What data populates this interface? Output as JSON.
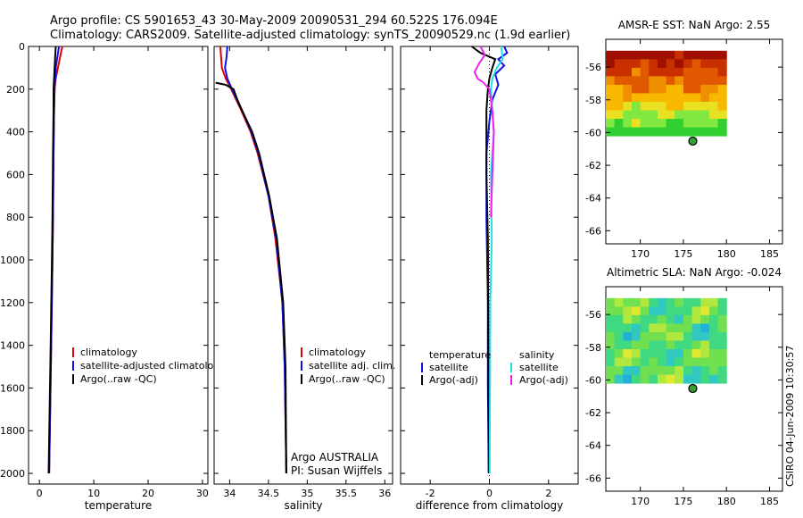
{
  "title": {
    "line1": "Argo profile: CS 5901653_43 30-May-2009 20090531_294 60.522S 176.094E",
    "line2": "Climatology: CARS2009. Satellite-adjusted climatology: synTS_20090529.nc (1.9d earlier)"
  },
  "footer": {
    "institution": "Argo AUSTRALIA",
    "pi": "PI: Susan Wijffels",
    "stamp": "CSIRO 04-Jun-2009 10:30:57"
  },
  "colors": {
    "red": "#e00000",
    "blue": "#1010e8",
    "black": "#000000",
    "cyan": "#20e0e8",
    "magenta": "#f020f0"
  },
  "chart_data": [
    {
      "type": "line",
      "panel": "temperature",
      "xlabel": "temperature",
      "ylabel": "",
      "xlim": [
        -2,
        31
      ],
      "ylim": [
        2050,
        0
      ],
      "xticks": [
        0,
        10,
        20,
        30
      ],
      "yticks": [
        0,
        200,
        400,
        600,
        800,
        1000,
        1200,
        1400,
        1600,
        1800,
        2000
      ],
      "legend": [
        "climatology",
        "satellite-adjusted climatology",
        "Argo(..raw -QC)"
      ],
      "series": [
        {
          "name": "climatology",
          "color": "red",
          "depth": [
            0,
            50,
            100,
            150,
            200,
            300,
            500,
            800,
            1000,
            1500,
            2000
          ],
          "values": [
            4.2,
            3.8,
            3.4,
            3.0,
            2.8,
            2.7,
            2.6,
            2.5,
            2.4,
            2.1,
            1.8
          ]
        },
        {
          "name": "satellite-adjusted climatology",
          "color": "blue",
          "depth": [
            0,
            50,
            100,
            150,
            200,
            300,
            500,
            800,
            1000,
            1500,
            2000
          ],
          "values": [
            3.6,
            3.3,
            3.0,
            2.9,
            2.8,
            2.7,
            2.6,
            2.5,
            2.4,
            2.1,
            1.8
          ]
        },
        {
          "name": "Argo(..raw -QC)",
          "color": "black",
          "depth": [
            0,
            50,
            100,
            150,
            200,
            300,
            500,
            800,
            1000,
            1500,
            2000
          ],
          "values": [
            3.0,
            2.9,
            2.8,
            2.7,
            2.6,
            2.6,
            2.5,
            2.4,
            2.3,
            2.0,
            1.7
          ]
        }
      ]
    },
    {
      "type": "line",
      "panel": "salinity",
      "xlabel": "salinity",
      "ylabel": "",
      "xlim": [
        33.8,
        36.1
      ],
      "ylim": [
        2050,
        0
      ],
      "xticks": [
        34,
        34.5,
        35,
        35.5,
        36
      ],
      "legend": [
        "climatology",
        "satellite adj. clim.",
        "Argo(..raw -QC)"
      ],
      "series": [
        {
          "name": "climatology",
          "color": "red",
          "depth": [
            0,
            50,
            100,
            150,
            200,
            300,
            400,
            500,
            700,
            900,
            1200,
            1500,
            2000
          ],
          "values": [
            33.88,
            33.89,
            33.9,
            33.95,
            34.02,
            34.15,
            34.27,
            34.36,
            34.5,
            34.59,
            34.68,
            34.71,
            34.73
          ]
        },
        {
          "name": "satellite adj. clim.",
          "color": "blue",
          "depth": [
            0,
            50,
            100,
            150,
            200,
            300,
            400,
            500,
            700,
            900,
            1200,
            1500,
            2000
          ],
          "values": [
            33.97,
            33.96,
            33.94,
            33.97,
            34.03,
            34.16,
            34.28,
            34.37,
            34.5,
            34.6,
            34.68,
            34.71,
            34.73
          ]
        },
        {
          "name": "Argo(..raw -QC)",
          "color": "black",
          "depth": [
            170,
            180,
            200,
            250,
            300,
            400,
            500,
            700,
            900,
            1200,
            1500,
            2000
          ],
          "values": [
            33.82,
            33.95,
            34.05,
            34.1,
            34.16,
            34.29,
            34.38,
            34.51,
            34.61,
            34.69,
            34.72,
            34.73
          ]
        }
      ]
    },
    {
      "type": "line",
      "panel": "difference",
      "xlabel": "difference from climatology",
      "ylabel": "",
      "xlim": [
        -3,
        3
      ],
      "ylim": [
        2050,
        0
      ],
      "xticks": [
        -2,
        0,
        2
      ],
      "legend": [
        "temperature",
        "satellite",
        "Argo(-adj)",
        "salinity",
        "satellite",
        "Argo(-adj)"
      ],
      "series": [
        {
          "name": "temperature satellite",
          "color": "blue",
          "depth": [
            0,
            30,
            60,
            90,
            130,
            180,
            250,
            350,
            500,
            800,
            1200,
            1600,
            2000
          ],
          "values": [
            0.5,
            0.6,
            0.3,
            0.5,
            0.2,
            0.3,
            0.1,
            0.0,
            -0.1,
            -0.1,
            -0.05,
            -0.05,
            -0.02
          ]
        },
        {
          "name": "temperature Argo(-adj)",
          "color": "black",
          "depth": [
            0,
            30,
            60,
            100,
            150,
            200,
            300,
            400,
            600,
            900,
            1300,
            1700,
            2000
          ],
          "values": [
            -0.6,
            -0.3,
            0.2,
            0.1,
            0.0,
            -0.05,
            -0.1,
            -0.1,
            -0.1,
            -0.05,
            -0.04,
            -0.03,
            -0.02
          ]
        },
        {
          "name": "salinity satellite",
          "color": "cyan",
          "depth": [
            0,
            60,
            100,
            150,
            200,
            300,
            400,
            600,
            900,
            1200,
            1600,
            2000
          ],
          "values": [
            0.4,
            0.45,
            0.25,
            0.1,
            0.05,
            0.1,
            0.15,
            0.05,
            0.08,
            0.03,
            0.02,
            0.01
          ]
        },
        {
          "name": "salinity Argo(-adj)",
          "color": "magenta",
          "depth": [
            0,
            40,
            80,
            120,
            150,
            170,
            200,
            250,
            300,
            400,
            600,
            800
          ],
          "values": [
            -0.3,
            -0.15,
            -0.35,
            -0.5,
            -0.4,
            -0.2,
            0.0,
            0.05,
            0.1,
            0.15,
            0.1,
            0.05
          ]
        }
      ]
    },
    {
      "type": "heatmap",
      "panel": "sst-map",
      "title": "AMSR-E SST: NaN Argo: 2.55",
      "xlim": [
        166,
        186.5
      ],
      "ylim": [
        -66.8,
        -54.3
      ],
      "xticks": [
        170,
        175,
        180,
        185
      ],
      "yticks": [
        -56,
        -58,
        -60,
        -62,
        -64,
        -66
      ],
      "float_position": {
        "lon": 176.094,
        "lat": -60.522
      },
      "field_extent": {
        "lon": [
          166,
          180
        ],
        "lat": [
          -60.2,
          -55
        ]
      },
      "palette": [
        "#a01000",
        "#c83000",
        "#e05800",
        "#f09000",
        "#f8b800",
        "#e8e020",
        "#80e840",
        "#30d030"
      ]
    },
    {
      "type": "heatmap",
      "panel": "sla-map",
      "title": "Altimetric SLA: NaN Argo: -0.024",
      "xlim": [
        166,
        186.5
      ],
      "ylim": [
        -66.8,
        -54.3
      ],
      "xticks": [
        170,
        175,
        180,
        185
      ],
      "yticks": [
        -56,
        -58,
        -60,
        -62,
        -64,
        -66
      ],
      "float_position": {
        "lon": 176.094,
        "lat": -60.522
      },
      "field_extent": {
        "lon": [
          166,
          180
        ],
        "lat": [
          -60.2,
          -55
        ]
      },
      "palette": [
        "#20b0d8",
        "#30c8c0",
        "#40d880",
        "#70e050",
        "#b0e840",
        "#e0e830"
      ]
    }
  ]
}
